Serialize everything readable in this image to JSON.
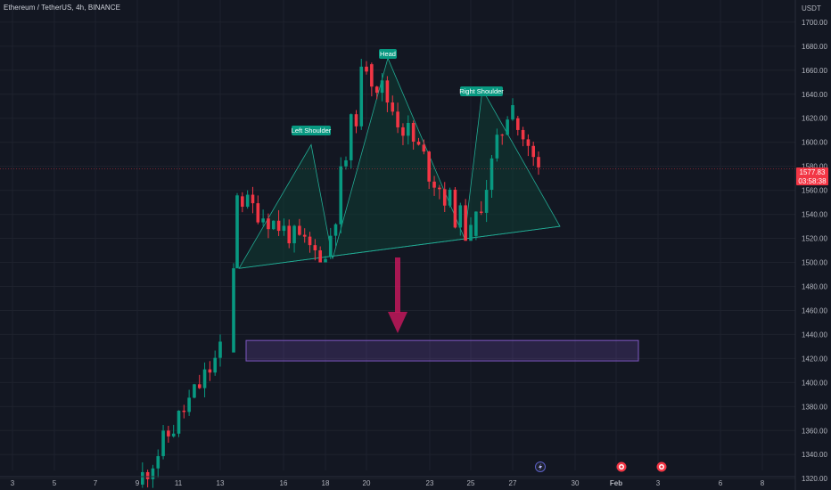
{
  "header": {
    "title": "Ethereum / TetherUS, 4h, BINANCE",
    "currency": "USDT"
  },
  "last_price": {
    "value": "1577.83",
    "countdown": "03:58:38"
  },
  "colors": {
    "background": "#131722",
    "up": "#089981",
    "down": "#f23645",
    "pattern_fill": "#0e3d33",
    "pattern_line": "#22ab94",
    "zone": "#7e57c2",
    "arrow": "#c2185b"
  },
  "chart_data": {
    "type": "candlestick",
    "title": "",
    "ylabel": "",
    "ylim": [
      1312,
      1714
    ],
    "y_ticks": [
      1320,
      1340,
      1360,
      1380,
      1400,
      1420,
      1440,
      1460,
      1480,
      1500,
      1520,
      1540,
      1560,
      1580,
      1600,
      1620,
      1640,
      1660,
      1680,
      1700
    ],
    "x_ticks": [
      "3",
      "5",
      "7",
      "9",
      "11",
      "13",
      "16",
      "18",
      "20",
      "23",
      "25",
      "27",
      "30",
      "Feb",
      "3",
      "6",
      "8"
    ],
    "ohlc_segments": [
      {
        "from_label": "9",
        "to_label": "13",
        "start": 1315,
        "end": 1425,
        "low": 1310,
        "high": 1440
      },
      {
        "from_label": "13",
        "to_label": "13",
        "start": 1425,
        "end": 1560,
        "low": 1495,
        "high": 1600
      },
      {
        "from_label": "13",
        "to_label": "18",
        "start": 1555,
        "end": 1502,
        "low": 1500,
        "high": 1610
      },
      {
        "from_label": "18",
        "to_label": "20",
        "start": 1505,
        "end": 1670,
        "low": 1502,
        "high": 1678
      },
      {
        "from_label": "20",
        "to_label": "25",
        "start": 1665,
        "end": 1520,
        "low": 1518,
        "high": 1672
      },
      {
        "from_label": "25",
        "to_label": "27",
        "start": 1522,
        "end": 1640,
        "low": 1518,
        "high": 1645
      },
      {
        "from_label": "27",
        "to_label": "29",
        "start": 1620,
        "end": 1577.83,
        "low": 1565,
        "high": 1622
      }
    ],
    "pattern": {
      "name": "head and shoulders",
      "labels": [
        "Left Shoulder",
        "Head",
        "Right Shoulder"
      ],
      "left_shoulder": 1610,
      "head": 1678,
      "right_shoulder": 1644,
      "neckline_start": 1495,
      "neckline_end": 1530
    },
    "target_zone": {
      "low": 1418,
      "high": 1435
    },
    "arrow": "down",
    "annotation_icons": [
      "lightning-event",
      "earnings-event",
      "earnings-event"
    ]
  }
}
